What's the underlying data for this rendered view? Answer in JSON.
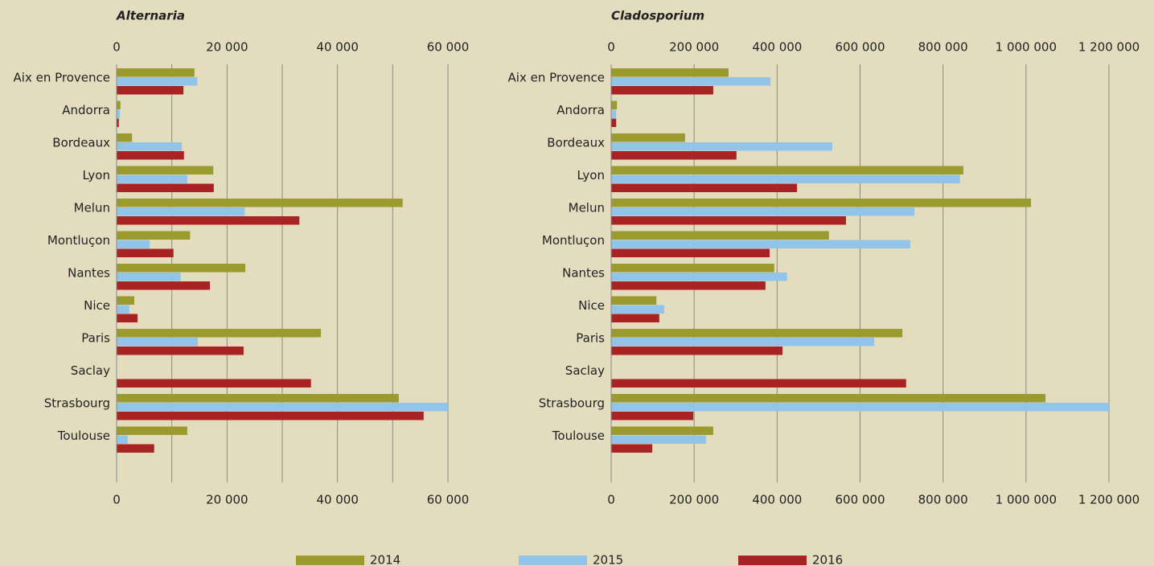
{
  "chart_data": [
    {
      "type": "barh",
      "title": "Alternaria",
      "categories": [
        "Aix en Provence",
        "Andorra",
        "Bordeaux",
        "Lyon",
        "Melun",
        "Montluçon",
        "Nantes",
        "Nice",
        "Paris",
        "Saclay",
        "Strasbourg",
        "Toulouse"
      ],
      "series": [
        {
          "name": "2014",
          "color": "#9a9a2e",
          "values": [
            14100,
            700,
            2800,
            17500,
            51800,
            13300,
            23300,
            3200,
            37000,
            null,
            51100,
            12800
          ]
        },
        {
          "name": "2015",
          "color": "#92c3e8",
          "values": [
            14600,
            600,
            11800,
            12800,
            23200,
            6000,
            11600,
            2300,
            14700,
            null,
            60000,
            2000
          ]
        },
        {
          "name": "2016",
          "color": "#a82424",
          "values": [
            12100,
            400,
            12200,
            17600,
            33100,
            10300,
            16900,
            3800,
            23000,
            35200,
            55600,
            6800
          ]
        }
      ],
      "xlim": [
        0,
        60000
      ],
      "xticks": [
        0,
        {
          "value": 20000,
          "label": "20 000"
        },
        {
          "value": 40000,
          "label": "40 000"
        },
        {
          "value": 60000,
          "label": "60 000"
        }
      ],
      "xminor": [
        10000,
        30000,
        50000
      ],
      "grid": true
    },
    {
      "type": "barh",
      "title": "Cladosporium",
      "categories": [
        "Aix en Provence",
        "Andorra",
        "Bordeaux",
        "Lyon",
        "Melun",
        "Montluçon",
        "Nantes",
        "Nice",
        "Paris",
        "Saclay",
        "Strasbourg",
        "Toulouse"
      ],
      "series": [
        {
          "name": "2014",
          "color": "#9a9a2e",
          "values": [
            283000,
            14000,
            178000,
            849000,
            1012000,
            525000,
            393000,
            109000,
            702000,
            null,
            1047000,
            246000
          ]
        },
        {
          "name": "2015",
          "color": "#92c3e8",
          "values": [
            384000,
            12000,
            533000,
            841000,
            731000,
            721000,
            424000,
            128000,
            634000,
            null,
            1200000,
            229000
          ]
        },
        {
          "name": "2016",
          "color": "#a82424",
          "values": [
            246000,
            12000,
            302000,
            448000,
            566000,
            382000,
            372000,
            116000,
            413000,
            711000,
            198000,
            99000
          ]
        }
      ],
      "xlim": [
        0,
        1200000
      ],
      "xticks": [
        0,
        {
          "value": 200000,
          "label": "200 000"
        },
        {
          "value": 400000,
          "label": "400 000"
        },
        {
          "value": 600000,
          "label": "600 000"
        },
        {
          "value": 800000,
          "label": "800 000"
        },
        {
          "value": 1000000,
          "label": "1 000 000"
        },
        {
          "value": 1200000,
          "label": "1 200 000"
        }
      ],
      "grid": true
    }
  ]
}
